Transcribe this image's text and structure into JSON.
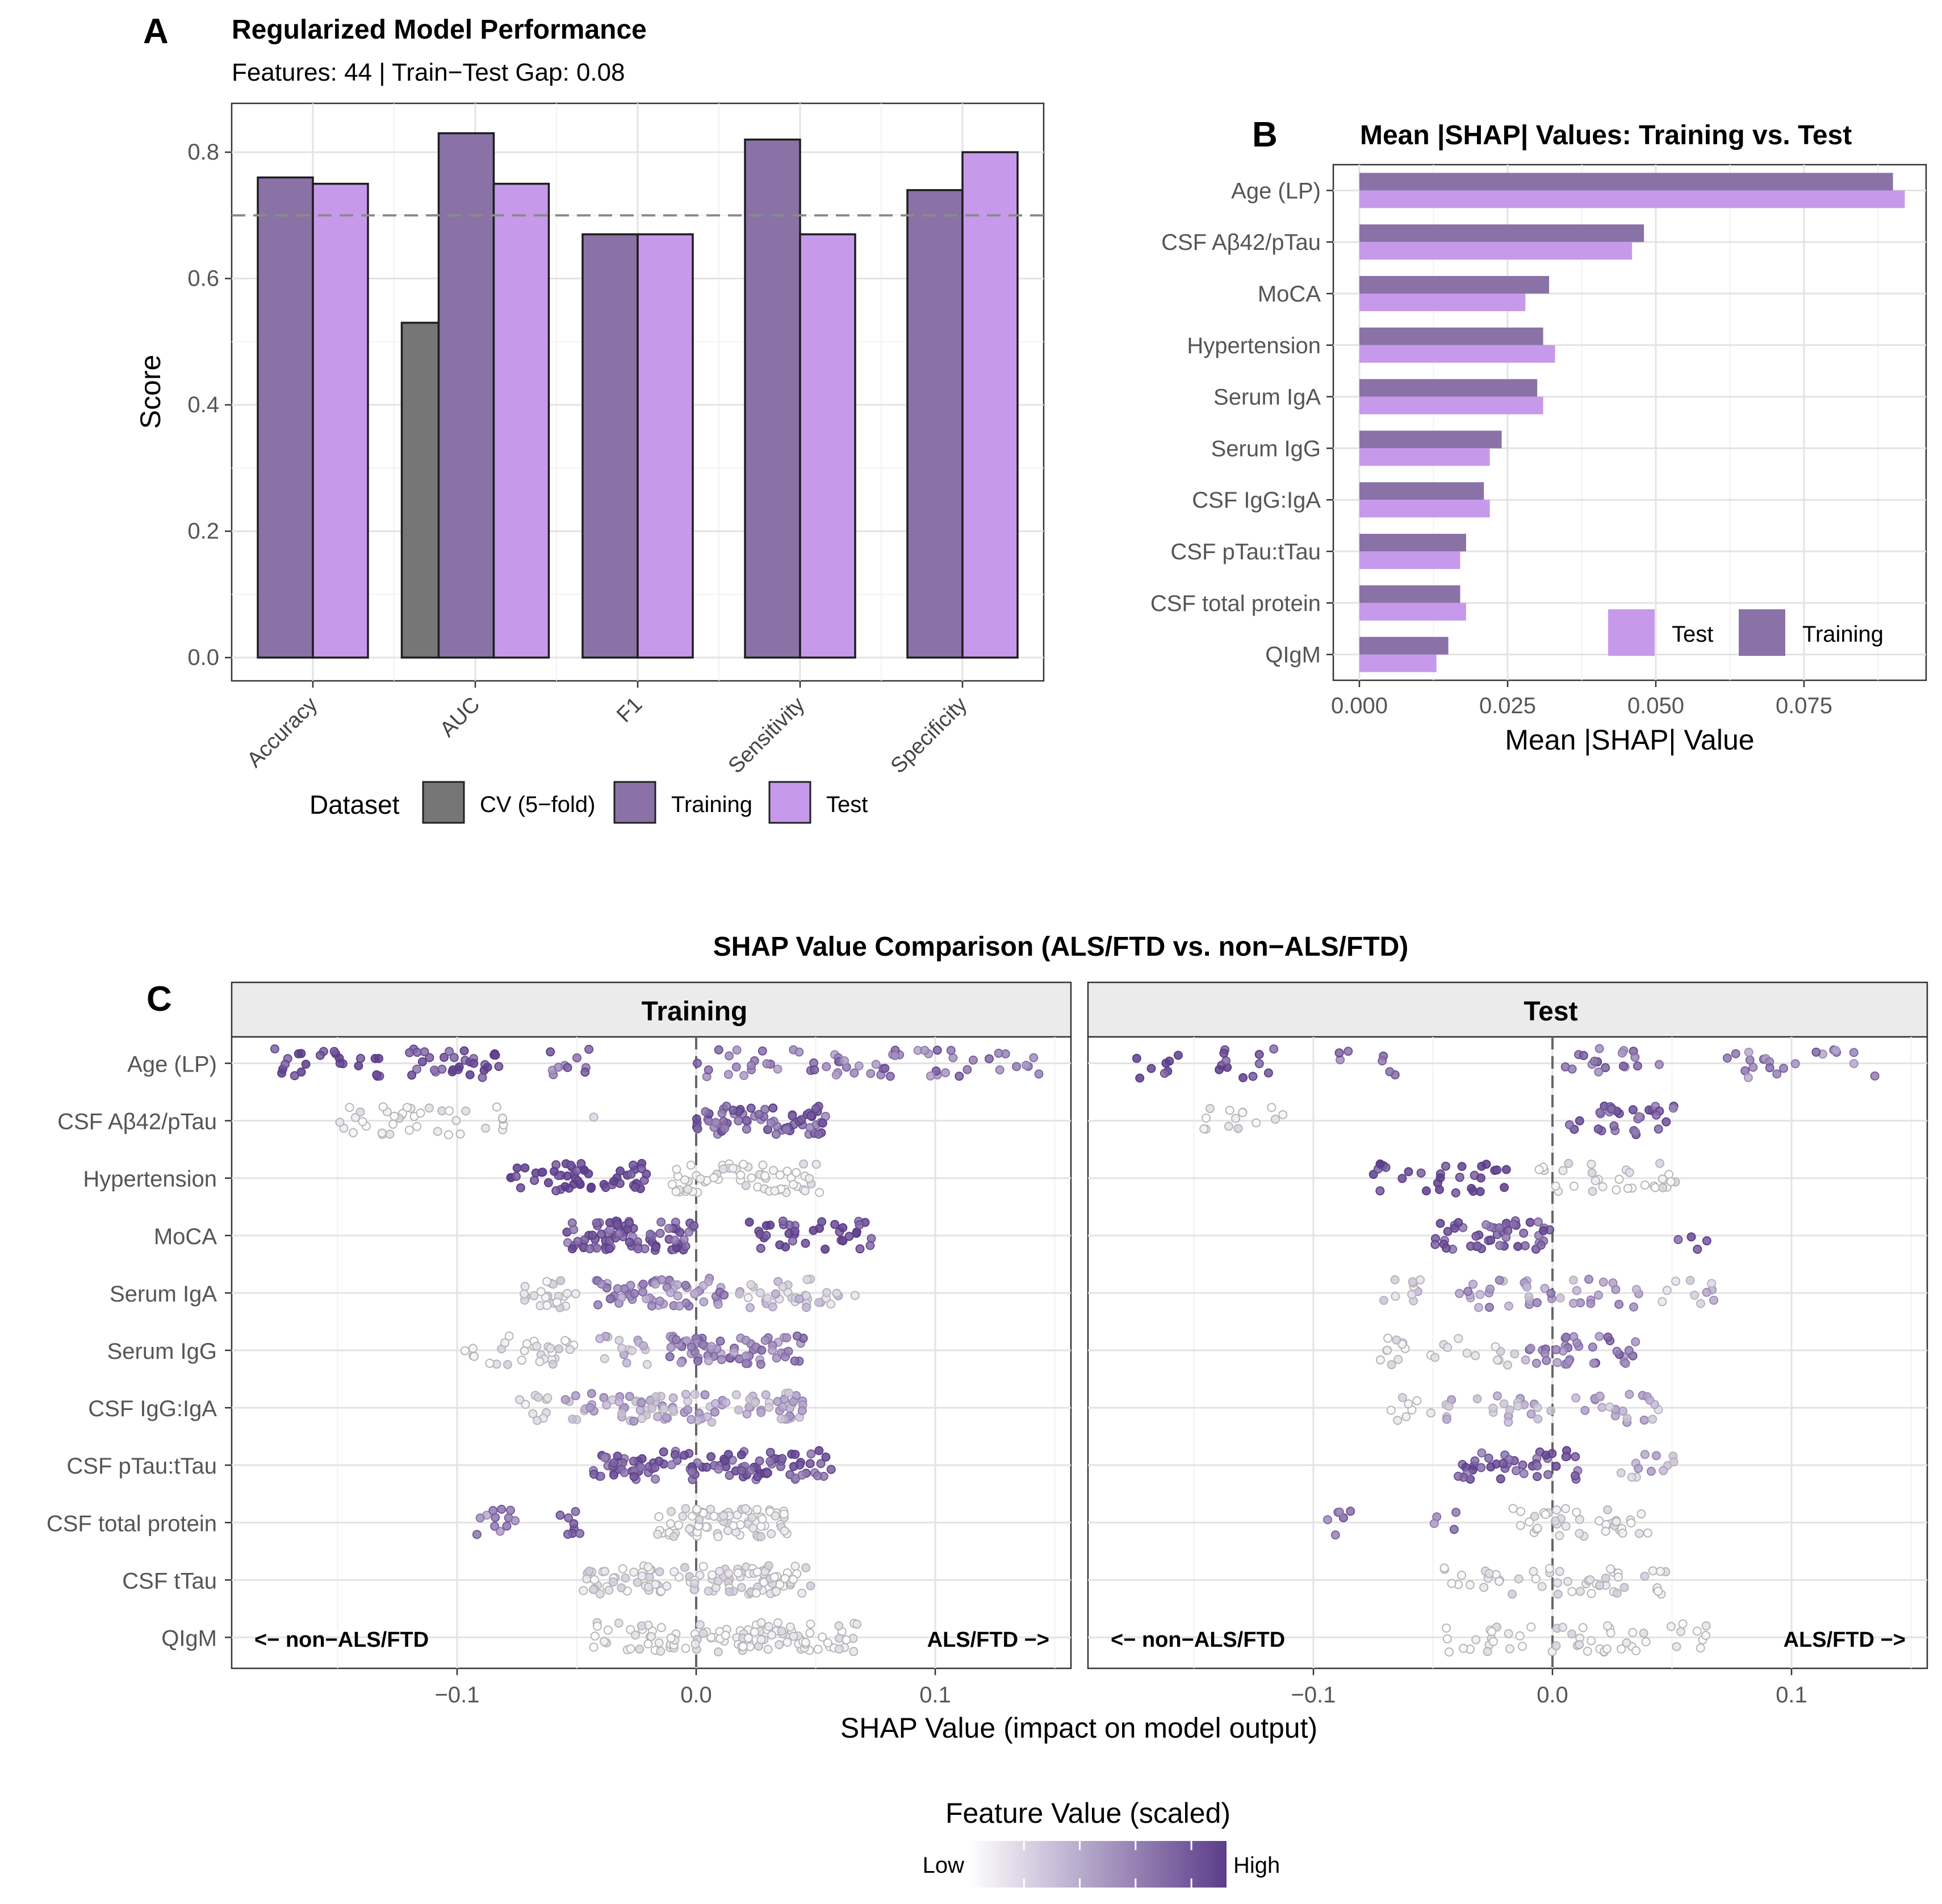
{
  "panelA": {
    "letter": "A",
    "title": "Regularized Model Performance",
    "subtitle": "Features: 44 | Train−Test Gap: 0.08",
    "ylabel": "Score",
    "legend_title": "Dataset",
    "legend_items": [
      "CV (5−fold)",
      "Training",
      "Test"
    ],
    "y_ticks": [
      "0.0",
      "0.2",
      "0.4",
      "0.6",
      "0.8"
    ]
  },
  "panelB": {
    "letter": "B",
    "title": "Mean |SHAP| Values: Training vs. Test",
    "xlabel": "Mean |SHAP| Value",
    "legend_items": [
      "Test",
      "Training"
    ],
    "x_ticks": [
      "0.000",
      "0.025",
      "0.050",
      "0.075"
    ]
  },
  "panelC": {
    "letter": "C",
    "title": "SHAP Value Comparison (ALS/FTD vs. non−ALS/FTD)",
    "facets": [
      "Training",
      "Test"
    ],
    "xlabel": "SHAP Value (impact on model output)",
    "annot_left": "<− non−ALS/FTD",
    "annot_right": "ALS/FTD −>",
    "x_ticks": [
      "−0.1",
      "0.0",
      "0.1"
    ],
    "colorbar_title": "Feature Value (scaled)",
    "colorbar_low": "Low",
    "colorbar_high": "High"
  },
  "colors": {
    "cv": "#767676",
    "training": "#8a72a6",
    "test": "#c799eb",
    "low": "#ffffff",
    "high": "#5c3d8a"
  },
  "chart_data": [
    {
      "type": "bar",
      "title": "Regularized Model Performance",
      "ylabel": "Score",
      "categories": [
        "Accuracy",
        "AUC",
        "F1",
        "Sensitivity",
        "Specificity"
      ],
      "series": [
        {
          "name": "CV (5−fold)",
          "values": [
            null,
            0.53,
            null,
            null,
            null
          ]
        },
        {
          "name": "Training",
          "values": [
            0.76,
            0.83,
            0.67,
            0.82,
            0.74
          ]
        },
        {
          "name": "Test",
          "values": [
            0.75,
            0.75,
            0.67,
            0.67,
            0.8
          ]
        }
      ],
      "reference_line": 0.7,
      "ylim": [
        0,
        0.85
      ],
      "grid": true,
      "legend": "bottom"
    },
    {
      "type": "bar",
      "orientation": "horizontal",
      "title": "Mean |SHAP| Values: Training vs. Test",
      "xlabel": "Mean |SHAP| Value",
      "categories": [
        "Age (LP)",
        "CSF Aβ42/pTau",
        "MoCA",
        "Hypertension",
        "Serum IgA",
        "Serum IgG",
        "CSF IgG:IgA",
        "CSF pTau:tTau",
        "CSF total protein",
        "QIgM"
      ],
      "series": [
        {
          "name": "Training",
          "values": [
            0.09,
            0.048,
            0.032,
            0.031,
            0.03,
            0.024,
            0.021,
            0.018,
            0.017,
            0.015
          ]
        },
        {
          "name": "Test",
          "values": [
            0.092,
            0.046,
            0.028,
            0.033,
            0.031,
            0.022,
            0.022,
            0.017,
            0.018,
            0.013
          ]
        }
      ],
      "xlim": [
        0,
        0.096
      ],
      "grid": true,
      "legend": "bottom-right"
    },
    {
      "type": "scatter",
      "title": "SHAP Value Comparison (ALS/FTD vs. non−ALS/FTD)",
      "xlabel": "SHAP Value (impact on model output)",
      "facets": [
        "Training",
        "Test"
      ],
      "categories": [
        "Age (LP)",
        "CSF Aβ42/pTau",
        "Hypertension",
        "MoCA",
        "Serum IgA",
        "Serum IgG",
        "CSF IgG:IgA",
        "CSF pTau:tTau",
        "CSF total protein",
        "CSF tTau",
        "QIgM"
      ],
      "xlim": [
        -0.195,
        0.155
      ],
      "reference_line": 0.0,
      "color_scale": {
        "title": "Feature Value (scaled)",
        "low": "Low",
        "high": "High"
      },
      "clusters": {
        "Training": [
          [
            [
              -0.178,
              -0.13,
              0.95,
              24
            ],
            [
              -0.12,
              -0.08,
              0.85,
              32
            ],
            [
              -0.068,
              -0.043,
              0.7,
              10
            ],
            [
              0.0,
              0.145,
              0.65,
              64
            ]
          ],
          [
            [
              -0.15,
              -0.078,
              0.05,
              38
            ],
            [
              -0.045,
              -0.04,
              0.05,
              1
            ],
            [
              0.0,
              0.055,
              0.75,
              70
            ]
          ],
          [
            [
              -0.078,
              -0.02,
              0.95,
              55
            ],
            [
              -0.01,
              0.052,
              0.05,
              60
            ]
          ],
          [
            [
              -0.055,
              0.0,
              0.8,
              85
            ],
            [
              0.022,
              0.075,
              0.9,
              38
            ]
          ],
          [
            [
              -0.072,
              -0.05,
              0.15,
              22
            ],
            [
              -0.043,
              0.012,
              0.55,
              60
            ],
            [
              0.018,
              0.07,
              0.25,
              38
            ]
          ],
          [
            [
              -0.097,
              -0.05,
              0.12,
              30
            ],
            [
              -0.045,
              -0.02,
              0.3,
              15
            ],
            [
              -0.012,
              0.045,
              0.6,
              70
            ]
          ],
          [
            [
              -0.075,
              -0.062,
              0.12,
              10
            ],
            [
              -0.055,
              0.045,
              0.4,
              100
            ]
          ],
          [
            [
              -0.045,
              0.058,
              0.8,
              110
            ]
          ],
          [
            [
              -0.092,
              -0.075,
              0.55,
              12
            ],
            [
              -0.058,
              -0.048,
              0.7,
              8
            ],
            [
              -0.017,
              0.038,
              0.1,
              75
            ]
          ],
          [
            [
              -0.048,
              0.048,
              0.12,
              110
            ]
          ],
          [
            [
              -0.045,
              0.068,
              0.06,
              110
            ]
          ]
        ],
        "Test": [
          [
            [
              -0.178,
              -0.155,
              0.9,
              8
            ],
            [
              -0.14,
              -0.115,
              0.85,
              12
            ],
            [
              -0.092,
              -0.055,
              0.75,
              7
            ],
            [
              0.0,
              0.045,
              0.7,
              18
            ],
            [
              0.065,
              0.135,
              0.6,
              22
            ]
          ],
          [
            [
              -0.15,
              -0.103,
              0.08,
              14
            ],
            [
              0.0,
              0.055,
              0.75,
              32
            ]
          ],
          [
            [
              -0.078,
              -0.018,
              0.95,
              30
            ],
            [
              -0.006,
              0.052,
              0.1,
              30
            ]
          ],
          [
            [
              -0.05,
              0.0,
              0.8,
              48
            ],
            [
              0.047,
              0.065,
              0.9,
              4
            ]
          ],
          [
            [
              -0.072,
              -0.055,
              0.2,
              10
            ],
            [
              -0.04,
              0.038,
              0.5,
              40
            ],
            [
              0.045,
              0.068,
              0.3,
              10
            ]
          ],
          [
            [
              -0.075,
              -0.04,
              0.12,
              14
            ],
            [
              -0.04,
              -0.01,
              0.2,
              10
            ],
            [
              -0.012,
              0.038,
              0.65,
              35
            ]
          ],
          [
            [
              -0.072,
              -0.05,
              0.12,
              8
            ],
            [
              -0.045,
              0.045,
              0.35,
              45
            ]
          ],
          [
            [
              -0.04,
              0.012,
              0.8,
              42
            ],
            [
              0.02,
              0.052,
              0.35,
              12
            ]
          ],
          [
            [
              -0.095,
              -0.075,
              0.75,
              6
            ],
            [
              -0.055,
              -0.04,
              0.6,
              4
            ],
            [
              -0.018,
              0.04,
              0.1,
              40
            ]
          ],
          [
            [
              -0.046,
              0.05,
              0.12,
              50
            ]
          ],
          [
            [
              -0.045,
              0.065,
              0.08,
              52
            ]
          ]
        ]
      }
    }
  ]
}
